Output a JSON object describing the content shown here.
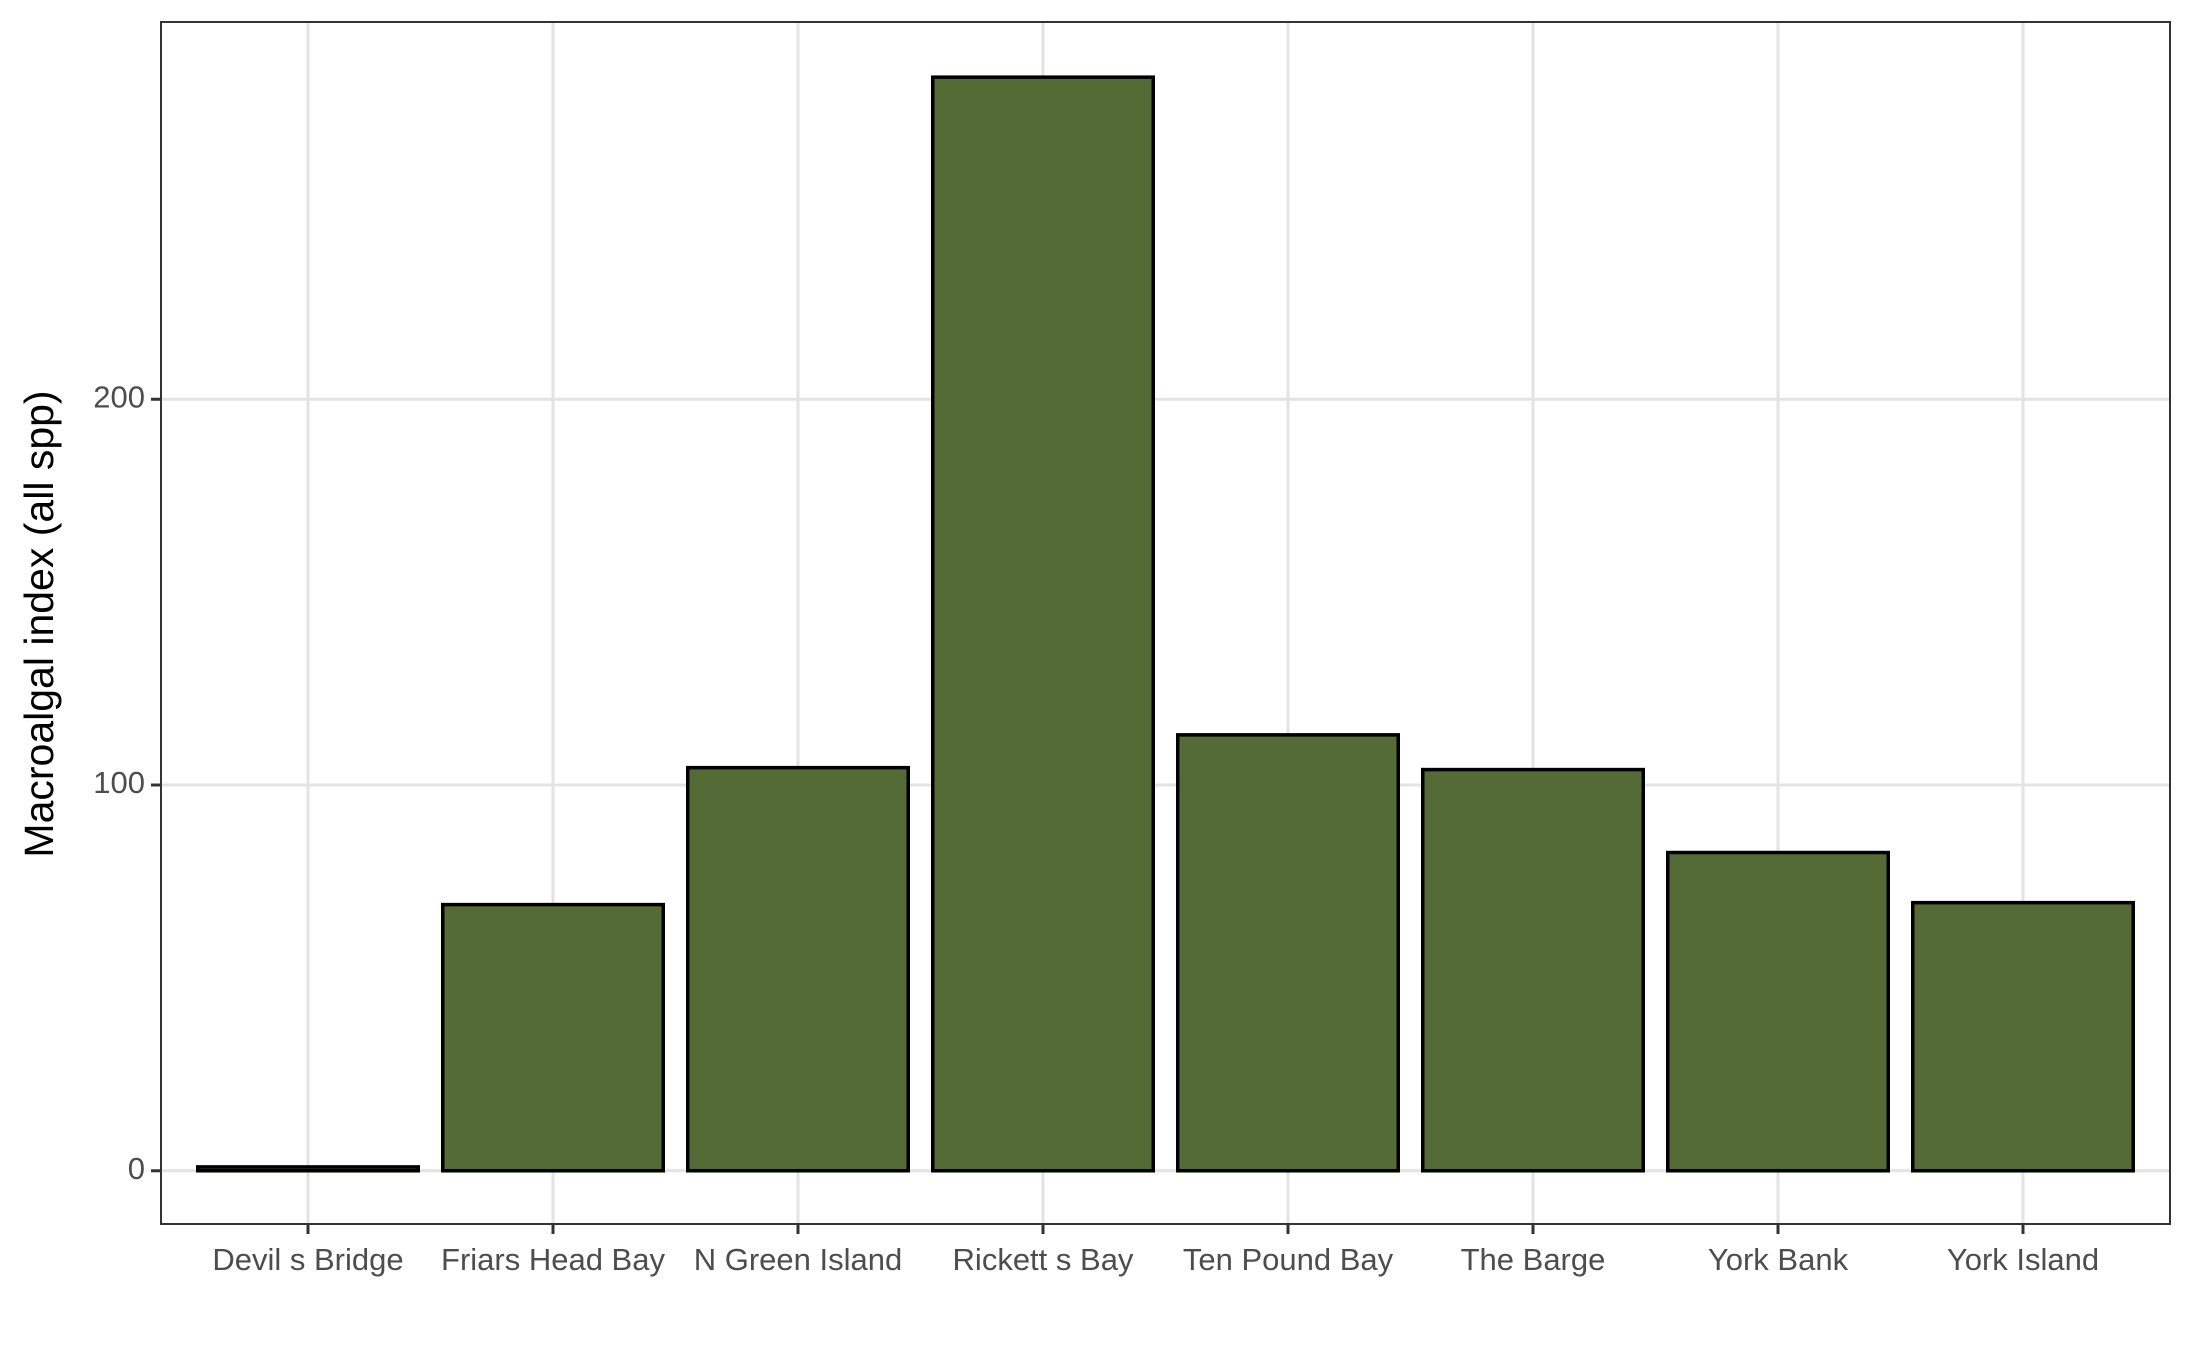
{
  "chart_data": {
    "type": "bar",
    "y_label": "Macroalgal index (all spp)",
    "categories": [
      "Devil s Bridge",
      "Friars Head Bay",
      "N Green Island",
      "Rickett s Bay",
      "Ten Pound Bay",
      "The Barge",
      "York Bank",
      "York Island"
    ],
    "values": [
      1,
      69,
      104.5,
      283.5,
      113,
      104,
      82.5,
      69.5
    ],
    "color": "#556b35",
    "ylim": [
      -13.8,
      297.8
    ],
    "yticks": [
      0,
      100,
      200
    ],
    "grid": true
  }
}
